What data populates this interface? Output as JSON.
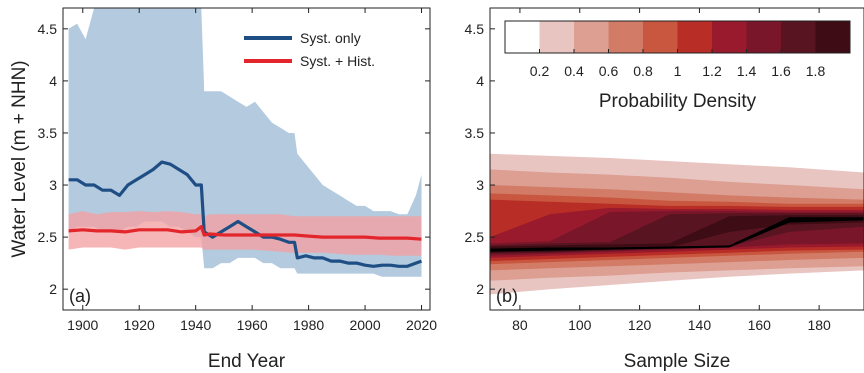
{
  "chart_data": [
    {
      "type": "line",
      "panel_label": "(a)",
      "xlabel": "End Year",
      "ylabel": "Water Level (m + NHN)",
      "xlim": [
        1893,
        2023
      ],
      "ylim": [
        1.8,
        4.7
      ],
      "xticks": [
        1900,
        1920,
        1940,
        1960,
        1980,
        2000,
        2020
      ],
      "yticks": [
        2,
        2.5,
        3,
        3.5,
        4,
        4.5
      ],
      "grid": false,
      "legend_position": "top-right",
      "series": [
        {
          "name": "Syst. only",
          "color": "#1f4e85",
          "band_color": "#9fbbd6",
          "x": [
            1895,
            1898,
            1901,
            1904,
            1907,
            1910,
            1913,
            1916,
            1919,
            1922,
            1925,
            1928,
            1931,
            1934,
            1937,
            1940,
            1942,
            1943,
            1946,
            1949,
            1952,
            1955,
            1958,
            1961,
            1964,
            1967,
            1970,
            1973,
            1975,
            1976,
            1979,
            1982,
            1985,
            1988,
            1991,
            1994,
            1997,
            2000,
            2003,
            2006,
            2009,
            2012,
            2015,
            2018,
            2020
          ],
          "values": [
            3.05,
            3.05,
            3.0,
            3.0,
            2.95,
            2.95,
            2.9,
            3.0,
            3.05,
            3.1,
            3.15,
            3.22,
            3.2,
            3.15,
            3.1,
            3.0,
            3.0,
            2.55,
            2.5,
            2.55,
            2.6,
            2.65,
            2.6,
            2.55,
            2.5,
            2.5,
            2.48,
            2.45,
            2.45,
            2.3,
            2.32,
            2.3,
            2.3,
            2.27,
            2.27,
            2.25,
            2.25,
            2.23,
            2.22,
            2.23,
            2.23,
            2.22,
            2.22,
            2.25,
            2.27
          ],
          "upper": [
            4.5,
            4.55,
            4.4,
            4.7,
            4.7,
            4.7,
            4.7,
            4.7,
            4.7,
            4.7,
            4.7,
            4.7,
            4.7,
            4.7,
            4.7,
            4.7,
            4.7,
            3.9,
            3.9,
            3.9,
            3.85,
            3.8,
            3.75,
            3.8,
            3.7,
            3.6,
            3.55,
            3.5,
            3.5,
            3.3,
            3.2,
            3.1,
            3.0,
            2.95,
            2.9,
            2.85,
            2.8,
            2.8,
            2.75,
            2.75,
            2.75,
            2.72,
            2.72,
            2.9,
            3.1
          ],
          "lower": [
            2.55,
            2.6,
            2.6,
            2.6,
            2.55,
            2.55,
            2.55,
            2.6,
            2.6,
            2.65,
            2.65,
            2.65,
            2.6,
            2.6,
            2.55,
            2.5,
            2.5,
            2.2,
            2.2,
            2.25,
            2.25,
            2.3,
            2.3,
            2.3,
            2.25,
            2.25,
            2.2,
            2.2,
            2.2,
            2.15,
            2.15,
            2.15,
            2.15,
            2.15,
            2.15,
            2.15,
            2.15,
            2.15,
            2.15,
            2.12,
            2.12,
            2.12,
            2.12,
            2.12,
            2.12
          ]
        },
        {
          "name": "Syst. + Hist.",
          "color": "#e3262b",
          "band_color": "#f3a0a2",
          "x": [
            1895,
            1900,
            1905,
            1910,
            1915,
            1920,
            1925,
            1930,
            1935,
            1940,
            1942,
            1943,
            1945,
            1950,
            1955,
            1960,
            1965,
            1970,
            1975,
            1980,
            1985,
            1990,
            1995,
            2000,
            2005,
            2010,
            2015,
            2020
          ],
          "values": [
            2.56,
            2.57,
            2.56,
            2.56,
            2.55,
            2.57,
            2.57,
            2.57,
            2.55,
            2.56,
            2.6,
            2.52,
            2.53,
            2.52,
            2.52,
            2.52,
            2.52,
            2.52,
            2.52,
            2.51,
            2.5,
            2.5,
            2.5,
            2.5,
            2.49,
            2.49,
            2.49,
            2.48
          ],
          "upper": [
            2.72,
            2.75,
            2.72,
            2.74,
            2.74,
            2.75,
            2.74,
            2.75,
            2.74,
            2.72,
            2.72,
            2.7,
            2.72,
            2.72,
            2.72,
            2.72,
            2.72,
            2.72,
            2.7,
            2.7,
            2.7,
            2.7,
            2.7,
            2.7,
            2.7,
            2.7,
            2.7,
            2.7
          ],
          "lower": [
            2.38,
            2.4,
            2.4,
            2.4,
            2.38,
            2.4,
            2.4,
            2.4,
            2.4,
            2.4,
            2.4,
            2.38,
            2.38,
            2.38,
            2.38,
            2.38,
            2.37,
            2.36,
            2.35,
            2.35,
            2.35,
            2.34,
            2.33,
            2.33,
            2.33,
            2.32,
            2.32,
            2.32
          ]
        }
      ]
    },
    {
      "type": "heatmap",
      "panel_label": "(b)",
      "xlabel": "Sample Size",
      "xlim": [
        70,
        195
      ],
      "ylim": [
        1.8,
        4.7
      ],
      "xticks": [
        80,
        100,
        120,
        140,
        160,
        180
      ],
      "yticks": [
        2,
        2.5,
        3,
        3.5,
        4,
        4.5
      ],
      "colorbar": {
        "label": "Probability Density",
        "ticks": [
          "0.2",
          "0.4",
          "0.6",
          "0.8",
          "1",
          "1.2",
          "1.4",
          "1.6",
          "1.8"
        ],
        "levels": [
          0,
          0.2,
          0.4,
          0.6,
          0.8,
          1.0,
          1.2,
          1.4,
          1.6,
          1.8
        ],
        "colors": [
          "#ffffff",
          "#e9c5c2",
          "#dd9f92",
          "#d27c68",
          "#c9573f",
          "#b92d27",
          "#991a2c",
          "#7a1629",
          "#581421",
          "#3d0c14"
        ]
      },
      "sample_size": [
        70,
        90,
        110,
        130,
        150,
        170,
        195
      ],
      "contour_upper_edges": [
        [
          3.3,
          3.28,
          3.26,
          3.23,
          3.2,
          3.17,
          3.12
        ],
        [
          3.15,
          3.12,
          3.1,
          3.07,
          3.03,
          3.0,
          2.96
        ],
        [
          3.0,
          2.98,
          2.96,
          2.93,
          2.9,
          2.88,
          2.86
        ],
        [
          2.92,
          2.9,
          2.88,
          2.85,
          2.84,
          2.82,
          2.82
        ],
        [
          2.86,
          2.84,
          2.82,
          2.8,
          2.8,
          2.79,
          2.79
        ],
        [
          2.5,
          2.72,
          2.78,
          2.77,
          2.77,
          2.76,
          2.76
        ],
        [
          2.44,
          2.46,
          2.74,
          2.75,
          2.75,
          2.74,
          2.74
        ],
        [
          2.42,
          2.44,
          2.45,
          2.72,
          2.73,
          2.73,
          2.73
        ],
        [
          2.41,
          2.42,
          2.43,
          2.44,
          2.7,
          2.71,
          2.71
        ],
        [
          2.39,
          2.4,
          2.4,
          2.41,
          2.42,
          2.69,
          2.69
        ]
      ],
      "contour_lower_edges": [
        [
          1.95,
          2.0,
          2.04,
          2.08,
          2.12,
          2.15,
          2.18
        ],
        [
          2.08,
          2.11,
          2.13,
          2.16,
          2.18,
          2.2,
          2.22
        ],
        [
          2.18,
          2.2,
          2.22,
          2.24,
          2.26,
          2.28,
          2.3
        ],
        [
          2.24,
          2.26,
          2.28,
          2.3,
          2.32,
          2.34,
          2.36
        ],
        [
          2.27,
          2.29,
          2.31,
          2.33,
          2.35,
          2.37,
          2.38
        ],
        [
          2.3,
          2.32,
          2.34,
          2.36,
          2.38,
          2.4,
          2.41
        ],
        [
          2.32,
          2.34,
          2.36,
          2.38,
          2.4,
          2.43,
          2.44
        ],
        [
          2.34,
          2.35,
          2.37,
          2.39,
          2.41,
          2.55,
          2.6
        ],
        [
          2.35,
          2.36,
          2.38,
          2.4,
          2.55,
          2.62,
          2.64
        ],
        [
          2.36,
          2.37,
          2.38,
          2.39,
          2.4,
          2.64,
          2.66
        ]
      ]
    }
  ]
}
